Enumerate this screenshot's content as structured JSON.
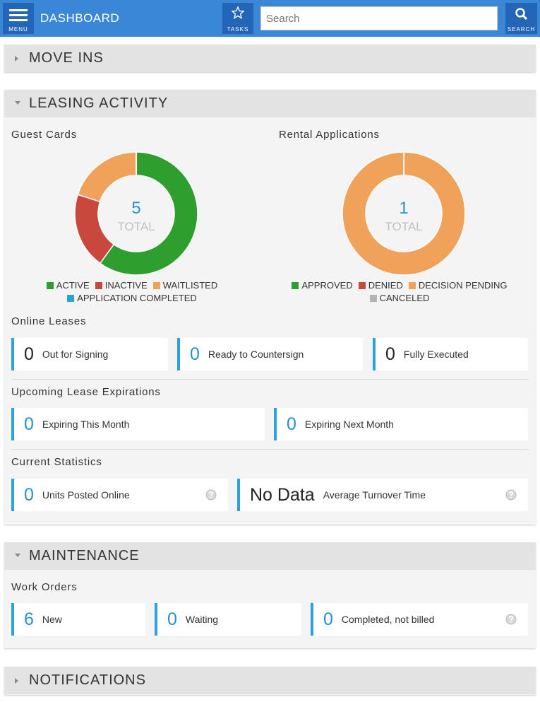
{
  "header": {
    "menu_label": "MENU",
    "title": "DASHBOARD",
    "tasks_label": "TASKS",
    "search_placeholder": "Search",
    "search_label": "SEARCH"
  },
  "move_ins": {
    "title": "MOVE INS"
  },
  "leasing": {
    "title": "LEASING ACTIVITY",
    "guest_cards": {
      "title": "Guest Cards",
      "total": 5,
      "total_label": "TOTAL",
      "series": [
        {
          "name": "ACTIVE",
          "color": "#2e9e2e",
          "value": 3
        },
        {
          "name": "INACTIVE",
          "color": "#c9483e",
          "value": 1
        },
        {
          "name": "WAITLISTED",
          "color": "#f0a15a",
          "value": 1
        },
        {
          "name": "APPLICATION COMPLETED",
          "color": "#2aa3dc",
          "value": 0
        }
      ]
    },
    "rental_applications": {
      "title": "Rental Applications",
      "total": 1,
      "total_label": "TOTAL",
      "series": [
        {
          "name": "APPROVED",
          "color": "#2e9e2e",
          "value": 0
        },
        {
          "name": "DENIED",
          "color": "#c9483e",
          "value": 0
        },
        {
          "name": "DECISION PENDING",
          "color": "#f0a15a",
          "value": 1
        },
        {
          "name": "CANCELED",
          "color": "#b5b5b5",
          "value": 0
        }
      ]
    },
    "online_leases": {
      "title": "Online Leases",
      "items": [
        {
          "value": 0,
          "label": "Out for Signing",
          "value_color": "#222222"
        },
        {
          "value": 0,
          "label": "Ready to Countersign",
          "value_color": "#2a8fd0"
        },
        {
          "value": 0,
          "label": "Fully Executed",
          "value_color": "#222222"
        }
      ]
    },
    "expirations": {
      "title": "Upcoming Lease Expirations",
      "items": [
        {
          "value": 0,
          "label": "Expiring This Month",
          "value_color": "#2a8fd0"
        },
        {
          "value": 0,
          "label": "Expiring Next Month",
          "value_color": "#2a8fd0"
        }
      ]
    },
    "statistics": {
      "title": "Current Statistics",
      "items": [
        {
          "value": 0,
          "label": "Units Posted Online",
          "value_color": "#2a8fd0",
          "help": true
        },
        {
          "value": "No Data",
          "label": "Average Turnover Time",
          "value_color": "#222222",
          "help": true
        }
      ]
    }
  },
  "maintenance": {
    "title": "MAINTENANCE",
    "work_orders": {
      "title": "Work Orders",
      "items": [
        {
          "value": 6,
          "label": "New",
          "value_color": "#2a8fd0"
        },
        {
          "value": 0,
          "label": "Waiting",
          "value_color": "#2a8fd0"
        },
        {
          "value": 0,
          "label": "Completed, not billed",
          "value_color": "#2a8fd0",
          "help": true
        }
      ]
    }
  },
  "notifications": {
    "title": "NOTIFICATIONS"
  }
}
